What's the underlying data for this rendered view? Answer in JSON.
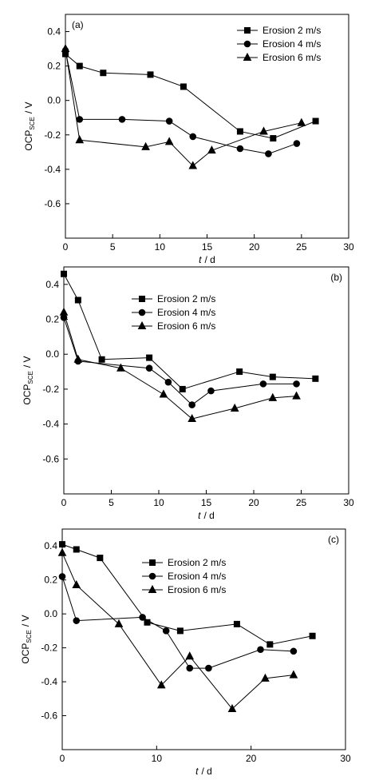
{
  "chart_data": [
    {
      "type": "line",
      "label": "(a)",
      "label_corner": "upper left",
      "legend": "upper right",
      "xlabel": "t",
      "xlabel_unit": "/ d",
      "ylabel": "OCP",
      "ylabel_subscript": "SCE",
      "ylabel_unit": "/ V",
      "xlim": [
        0,
        30
      ],
      "xticks": [
        0,
        5,
        10,
        15,
        20,
        25,
        30
      ],
      "ylim": [
        -0.8,
        0.5
      ],
      "yticks": [
        0.4,
        0.2,
        {
          "value": 0,
          "label": "0.0"
        },
        -0.2,
        -0.4,
        -0.6
      ],
      "series": [
        {
          "name": "Erosion 2 m/s",
          "color": "#000000",
          "marker": "square",
          "x": [
            0,
            1.5,
            4,
            9,
            12.5,
            18.5,
            22,
            26.5
          ],
          "values": [
            0.27,
            0.2,
            0.16,
            0.15,
            0.08,
            -0.18,
            -0.22,
            -0.12
          ]
        },
        {
          "name": "Erosion 4 m/s",
          "color": "#000000",
          "marker": "circle",
          "x": [
            0,
            1.5,
            6,
            11,
            13.5,
            18.5,
            21.5,
            24.5
          ],
          "values": [
            0.29,
            -0.11,
            -0.11,
            -0.12,
            -0.21,
            -0.28,
            -0.31,
            -0.25
          ]
        },
        {
          "name": "Erosion 6 m/s",
          "color": "#000000",
          "marker": "triangle",
          "x": [
            0,
            1.5,
            8.5,
            11,
            13.5,
            15.5,
            21,
            25
          ],
          "values": [
            0.3,
            -0.23,
            -0.27,
            -0.24,
            -0.38,
            -0.29,
            -0.18,
            -0.13
          ]
        }
      ]
    },
    {
      "type": "line",
      "label": "(b)",
      "label_corner": "upper right",
      "legend": "upper center",
      "xlabel": "t",
      "xlabel_unit": "/ d",
      "ylabel": "OCP",
      "ylabel_subscript": "SCE",
      "ylabel_unit": "/ V",
      "xlim": [
        0,
        30
      ],
      "xticks": [
        0,
        5,
        10,
        15,
        20,
        25,
        30
      ],
      "ylim": [
        -0.8,
        0.5
      ],
      "yticks": [
        0.4,
        0.2,
        {
          "value": 0,
          "label": "0.0"
        },
        -0.2,
        -0.4,
        -0.6
      ],
      "series": [
        {
          "name": "Erosion 2 m/s",
          "color": "#000000",
          "marker": "square",
          "x": [
            0,
            1.5,
            4,
            9,
            12.5,
            18.5,
            22,
            26.5
          ],
          "values": [
            0.46,
            0.31,
            -0.03,
            -0.02,
            -0.2,
            -0.1,
            -0.13,
            -0.14
          ]
        },
        {
          "name": "Erosion 4 m/s",
          "color": "#000000",
          "marker": "circle",
          "x": [
            0,
            1.5,
            9,
            11,
            13.5,
            15.5,
            21,
            24.5
          ],
          "values": [
            0.21,
            -0.04,
            -0.08,
            -0.16,
            -0.29,
            -0.21,
            -0.17,
            -0.17
          ]
        },
        {
          "name": "Erosion 6 m/s",
          "color": "#000000",
          "marker": "triangle",
          "x": [
            0,
            1.5,
            6,
            10.5,
            13.5,
            18,
            22,
            24.5
          ],
          "values": [
            0.24,
            -0.03,
            -0.08,
            -0.23,
            -0.37,
            -0.31,
            -0.25,
            -0.24
          ]
        }
      ]
    },
    {
      "type": "line",
      "label": "(c)",
      "label_corner": "upper right",
      "legend": "upper left",
      "xlabel": "t",
      "xlabel_unit": "/ d",
      "ylabel": "OCP",
      "ylabel_subscript": "SCE",
      "ylabel_unit": "/ V",
      "xlim": [
        0,
        30
      ],
      "xticks": [
        0,
        10,
        20,
        30
      ],
      "ylim": [
        -0.8,
        0.5
      ],
      "yticks": [
        0.4,
        0.2,
        {
          "value": 0,
          "label": "0.0"
        },
        -0.2,
        -0.4,
        -0.6
      ],
      "series": [
        {
          "name": "Erosion 2 m/s",
          "color": "#000000",
          "marker": "square",
          "x": [
            0,
            1.5,
            4,
            9,
            12.5,
            18.5,
            22,
            26.5
          ],
          "values": [
            0.41,
            0.38,
            0.33,
            -0.05,
            -0.1,
            -0.06,
            -0.18,
            -0.13
          ]
        },
        {
          "name": "Erosion 4 m/s",
          "color": "#000000",
          "marker": "circle",
          "x": [
            0,
            1.5,
            8.5,
            11,
            13.5,
            15.5,
            21,
            24.5
          ],
          "values": [
            0.22,
            -0.04,
            -0.02,
            -0.1,
            -0.32,
            -0.32,
            -0.21,
            -0.22
          ]
        },
        {
          "name": "Erosion 6 m/s",
          "color": "#000000",
          "marker": "triangle",
          "x": [
            0,
            1.5,
            6,
            10.5,
            13.5,
            18,
            21.5,
            24.5
          ],
          "values": [
            0.36,
            0.17,
            -0.06,
            -0.42,
            -0.25,
            -0.56,
            -0.38,
            -0.36
          ]
        }
      ]
    }
  ]
}
